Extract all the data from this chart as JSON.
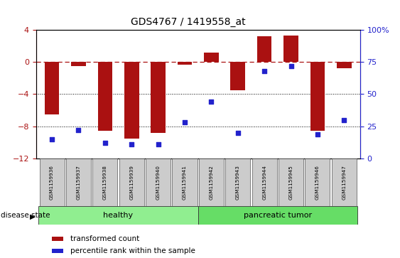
{
  "title": "GDS4767 / 1419558_at",
  "samples": [
    "GSM1159936",
    "GSM1159937",
    "GSM1159938",
    "GSM1159939",
    "GSM1159940",
    "GSM1159941",
    "GSM1159942",
    "GSM1159943",
    "GSM1159944",
    "GSM1159945",
    "GSM1159946",
    "GSM1159947"
  ],
  "transformed_count": [
    -6.5,
    -0.5,
    -8.5,
    -9.5,
    -8.8,
    -0.3,
    1.2,
    -3.5,
    3.2,
    3.3,
    -8.5,
    -0.8
  ],
  "percentile_rank": [
    15,
    22,
    12,
    11,
    11,
    28,
    44,
    20,
    68,
    72,
    19,
    30
  ],
  "groups": [
    {
      "name": "healthy",
      "start": 0,
      "end": 6,
      "color": "#90EE90"
    },
    {
      "name": "pancreatic tumor",
      "start": 6,
      "end": 12,
      "color": "#66DD66"
    }
  ],
  "ylim_left": [
    -12,
    4
  ],
  "ylim_right": [
    0,
    100
  ],
  "yticks_left": [
    -12,
    -8,
    -4,
    0,
    4
  ],
  "yticks_right": [
    0,
    25,
    50,
    75,
    100
  ],
  "bar_color": "#AA1111",
  "dot_color": "#2222CC",
  "hline_y": 0,
  "dotted_lines": [
    -4,
    -8
  ],
  "background_color": "#ffffff",
  "plot_bg": "#ffffff",
  "legend_items": [
    {
      "color": "#AA1111",
      "label": "transformed count"
    },
    {
      "color": "#2222CC",
      "label": "percentile rank within the sample"
    }
  ]
}
